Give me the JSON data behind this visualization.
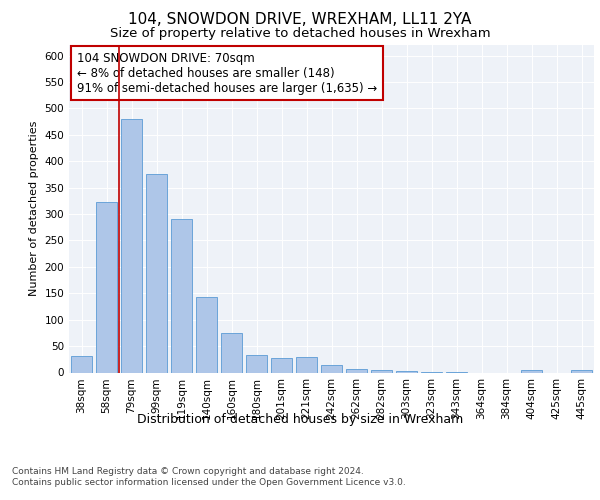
{
  "title": "104, SNOWDON DRIVE, WREXHAM, LL11 2YA",
  "subtitle": "Size of property relative to detached houses in Wrexham",
  "xlabel": "Distribution of detached houses by size in Wrexham",
  "ylabel": "Number of detached properties",
  "categories": [
    "38sqm",
    "58sqm",
    "79sqm",
    "99sqm",
    "119sqm",
    "140sqm",
    "160sqm",
    "180sqm",
    "201sqm",
    "221sqm",
    "242sqm",
    "262sqm",
    "282sqm",
    "303sqm",
    "323sqm",
    "343sqm",
    "364sqm",
    "384sqm",
    "404sqm",
    "425sqm",
    "445sqm"
  ],
  "values": [
    32,
    323,
    480,
    375,
    290,
    143,
    75,
    33,
    28,
    30,
    14,
    7,
    5,
    3,
    1,
    1,
    0,
    0,
    4,
    0,
    5
  ],
  "bar_color": "#aec6e8",
  "bar_edge_color": "#5b9bd5",
  "highlight_color": "#c00000",
  "red_line_x": 2.0,
  "annotation_text": "104 SNOWDON DRIVE: 70sqm\n← 8% of detached houses are smaller (148)\n91% of semi-detached houses are larger (1,635) →",
  "annotation_box_color": "#ffffff",
  "annotation_box_edge_color": "#c00000",
  "ylim": [
    0,
    620
  ],
  "yticks": [
    0,
    50,
    100,
    150,
    200,
    250,
    300,
    350,
    400,
    450,
    500,
    550,
    600
  ],
  "background_color": "#eef2f8",
  "footnote": "Contains HM Land Registry data © Crown copyright and database right 2024.\nContains public sector information licensed under the Open Government Licence v3.0.",
  "title_fontsize": 11,
  "subtitle_fontsize": 9.5,
  "xlabel_fontsize": 9,
  "ylabel_fontsize": 8,
  "tick_fontsize": 7.5,
  "annotation_fontsize": 8.5,
  "footnote_fontsize": 6.5
}
